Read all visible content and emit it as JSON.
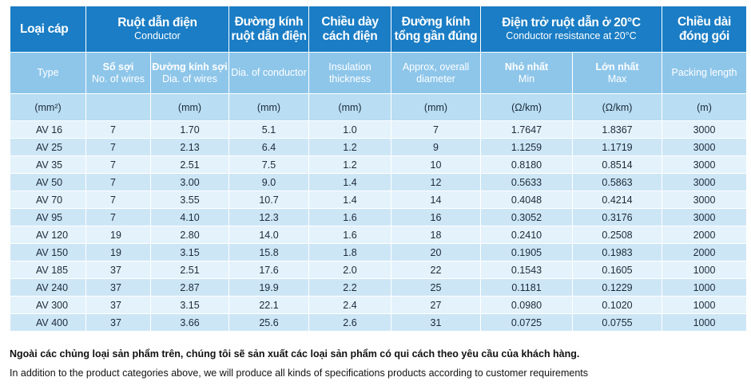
{
  "header": {
    "type_vi": "Loại cáp",
    "conductor_vi": "Ruột dẫn điện",
    "conductor_en": "Conductor",
    "dia_vi": "Đường kính ruột dẫn điện",
    "ins_vi": "Chiều dày cách điện",
    "overall_vi": "Đường kính tổng gần đúng",
    "res_vi": "Điện trở ruột dẫn ở 20°C",
    "res_en": "Conductor resistance at 20°C",
    "pack_vi": "Chiều dài đóng gói"
  },
  "subheader": {
    "type_en": "Type",
    "wires_vi": "Số sợi",
    "wires_en": "No. of wires",
    "wdia_vi": "Đường kính sợi",
    "wdia_en": "Dia. of wires",
    "cdia_en": "Dia. of conductor",
    "ins_en": "Insulation thickness",
    "overall_en": "Approx, overall diameter",
    "min_vi": "Nhỏ nhất",
    "min_en": "Min",
    "max_vi": "Lớn nhất",
    "max_en": "Max",
    "pack_en": "Packing length"
  },
  "units": [
    "(mm²)",
    "",
    "(mm)",
    "(mm)",
    "(mm)",
    "(mm)",
    "(Ω/km)",
    "(Ω/km)",
    "(m)"
  ],
  "rows": [
    [
      "AV 16",
      "7",
      "1.70",
      "5.1",
      "1.0",
      "7",
      "1.7647",
      "1.8367",
      "3000"
    ],
    [
      "AV 25",
      "7",
      "2.13",
      "6.4",
      "1.2",
      "9",
      "1.1259",
      "1.1719",
      "3000"
    ],
    [
      "AV 35",
      "7",
      "2.51",
      "7.5",
      "1.2",
      "10",
      "0.8180",
      "0.8514",
      "3000"
    ],
    [
      "AV 50",
      "7",
      "3.00",
      "9.0",
      "1.4",
      "12",
      "0.5633",
      "0.5863",
      "3000"
    ],
    [
      "AV 70",
      "7",
      "3.55",
      "10.7",
      "1.4",
      "14",
      "0.4048",
      "0.4214",
      "3000"
    ],
    [
      "AV 95",
      "7",
      "4.10",
      "12.3",
      "1.6",
      "16",
      "0.3052",
      "0.3176",
      "3000"
    ],
    [
      "AV 120",
      "19",
      "2.80",
      "14.0",
      "1.6",
      "18",
      "0.2410",
      "0.2508",
      "2000"
    ],
    [
      "AV 150",
      "19",
      "3.15",
      "15.8",
      "1.8",
      "20",
      "0.1905",
      "0.1983",
      "2000"
    ],
    [
      "AV 185",
      "37",
      "2.51",
      "17.6",
      "2.0",
      "22",
      "0.1543",
      "0.1605",
      "1000"
    ],
    [
      "AV 240",
      "37",
      "2.87",
      "19.9",
      "2.2",
      "25",
      "0.1181",
      "0.1229",
      "1000"
    ],
    [
      "AV 300",
      "37",
      "3.15",
      "22.1",
      "2.4",
      "27",
      "0.0980",
      "0.1020",
      "1000"
    ],
    [
      "AV 400",
      "37",
      "3.66",
      "25.6",
      "2.6",
      "31",
      "0.0725",
      "0.0755",
      "1000"
    ]
  ],
  "footer": {
    "vi": "Ngoài các chủng loại sản phẩm trên, chúng tôi sẽ sản xuất các loại sản phẩm có qui cách theo yêu cầu của khách hàng.",
    "en": "In addition to the product categories above, we will produce all kinds of specifications products according to customer requirements"
  }
}
